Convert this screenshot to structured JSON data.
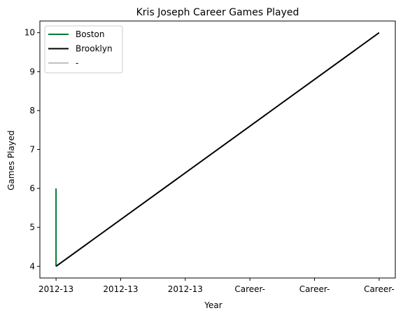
{
  "chart_data": {
    "type": "line",
    "title": "Kris Joseph Career Games Played",
    "xlabel": "Year",
    "ylabel": "Games Played",
    "x_tick_labels": [
      "2012-13",
      "2012-13",
      "2012-13",
      "Career-",
      "Career-",
      "Career-"
    ],
    "xlim": [
      -0.25,
      5.25
    ],
    "ylim": [
      3.7,
      10.3
    ],
    "y_ticks": [
      4,
      5,
      6,
      7,
      8,
      9,
      10
    ],
    "grid": false,
    "legend_position": "top-left",
    "series": [
      {
        "name": "Boston",
        "color": "#007a33",
        "x": [
          0,
          0
        ],
        "y": [
          6,
          4
        ]
      },
      {
        "name": "Brooklyn",
        "color": "#000000",
        "x": [
          0,
          5
        ],
        "y": [
          4,
          10
        ]
      },
      {
        "name": "-",
        "color": "#c0c0c0",
        "x": [],
        "y": []
      }
    ]
  }
}
